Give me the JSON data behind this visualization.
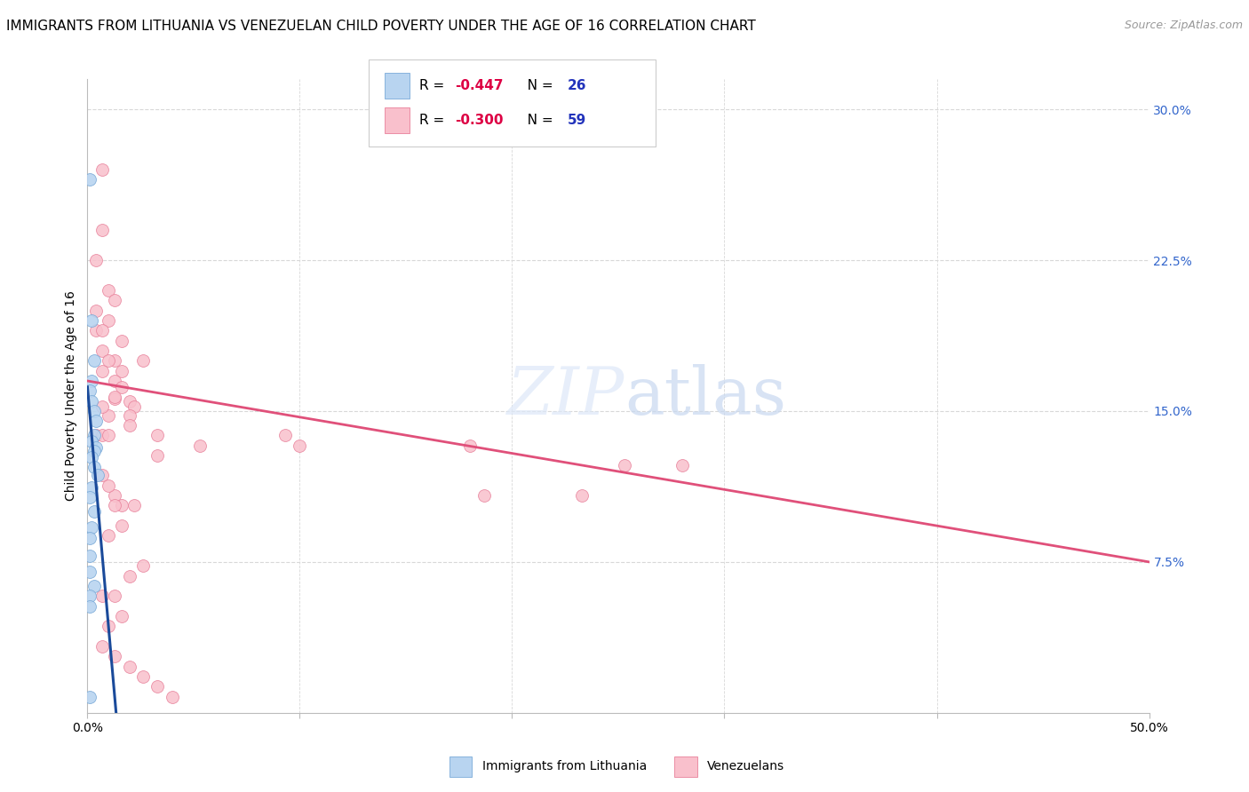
{
  "title": "IMMIGRANTS FROM LITHUANIA VS VENEZUELAN CHILD POVERTY UNDER THE AGE OF 16 CORRELATION CHART",
  "source": "Source: ZipAtlas.com",
  "ylabel": "Child Poverty Under the Age of 16",
  "right_yticks": [
    "30.0%",
    "22.5%",
    "15.0%",
    "7.5%"
  ],
  "right_ytick_vals": [
    0.3,
    0.225,
    0.15,
    0.075
  ],
  "xmin": 0.0,
  "xmax": 0.5,
  "ymin": 0.0,
  "ymax": 0.315,
  "xtick_labels": [
    "0.0%",
    "",
    "",
    "",
    "",
    "50.0%"
  ],
  "xtick_vals": [
    0.0,
    0.1,
    0.2,
    0.3,
    0.4,
    0.5
  ],
  "scatter_blue": {
    "x": [
      0.001,
      0.002,
      0.003,
      0.002,
      0.001,
      0.002,
      0.003,
      0.004,
      0.003,
      0.002,
      0.004,
      0.003,
      0.002,
      0.003,
      0.005,
      0.002,
      0.001,
      0.003,
      0.002,
      0.001,
      0.001,
      0.001,
      0.003,
      0.001,
      0.001,
      0.001
    ],
    "y": [
      0.265,
      0.195,
      0.175,
      0.165,
      0.16,
      0.155,
      0.15,
      0.145,
      0.138,
      0.135,
      0.132,
      0.13,
      0.127,
      0.122,
      0.118,
      0.112,
      0.107,
      0.1,
      0.092,
      0.087,
      0.078,
      0.07,
      0.063,
      0.058,
      0.053,
      0.008
    ],
    "color": "#b8d4f0",
    "edgecolor": "#7aaad8",
    "size": 100
  },
  "scatter_pink": {
    "x": [
      0.004,
      0.007,
      0.01,
      0.013,
      0.004,
      0.01,
      0.016,
      0.013,
      0.004,
      0.007,
      0.01,
      0.016,
      0.013,
      0.007,
      0.02,
      0.022,
      0.013,
      0.007,
      0.016,
      0.026,
      0.01,
      0.013,
      0.007,
      0.02,
      0.1,
      0.033,
      0.033,
      0.053,
      0.093,
      0.18,
      0.187,
      0.233,
      0.253,
      0.28,
      0.004,
      0.007,
      0.02,
      0.01,
      0.013,
      0.016,
      0.007,
      0.01,
      0.013,
      0.022,
      0.016,
      0.01,
      0.007,
      0.013,
      0.026,
      0.02,
      0.016,
      0.01,
      0.007,
      0.013,
      0.02,
      0.026,
      0.033,
      0.04,
      0.007
    ],
    "y": [
      0.19,
      0.24,
      0.21,
      0.205,
      0.2,
      0.195,
      0.185,
      0.175,
      0.225,
      0.18,
      0.175,
      0.17,
      0.165,
      0.19,
      0.155,
      0.152,
      0.156,
      0.17,
      0.162,
      0.175,
      0.148,
      0.157,
      0.152,
      0.148,
      0.133,
      0.128,
      0.138,
      0.133,
      0.138,
      0.133,
      0.108,
      0.108,
      0.123,
      0.123,
      0.138,
      0.138,
      0.143,
      0.138,
      0.108,
      0.103,
      0.118,
      0.113,
      0.103,
      0.103,
      0.093,
      0.088,
      0.058,
      0.058,
      0.073,
      0.068,
      0.048,
      0.043,
      0.033,
      0.028,
      0.023,
      0.018,
      0.013,
      0.008,
      0.27
    ],
    "color": "#f9c0cc",
    "edgecolor": "#e8809a",
    "size": 100
  },
  "trendline_blue": {
    "x_start": 0.0,
    "x_end": 0.0155,
    "slope": -12.0,
    "intercept": 0.162,
    "color": "#1a4a9a",
    "linewidth": 2.2
  },
  "trendline_pink": {
    "x_start": 0.0,
    "x_end": 0.5,
    "slope": -0.18,
    "intercept": 0.165,
    "color": "#e0507a",
    "linewidth": 2.0
  },
  "grid_color": "#d8d8d8",
  "background_color": "#ffffff",
  "title_fontsize": 11,
  "source_fontsize": 9,
  "axis_label_fontsize": 10,
  "tick_fontsize": 10,
  "right_tick_color": "#3366cc",
  "legend_box_color": "#cccccc",
  "legend_r_text_color": "#dd0044",
  "legend_n_text_color": "#2233bb",
  "bottom_legend_items": [
    {
      "label": "Immigrants from Lithuania",
      "color": "#b8d4f0",
      "edgecolor": "#7aaad8"
    },
    {
      "label": "Venezuelans",
      "color": "#f9c0cc",
      "edgecolor": "#e8809a"
    }
  ]
}
